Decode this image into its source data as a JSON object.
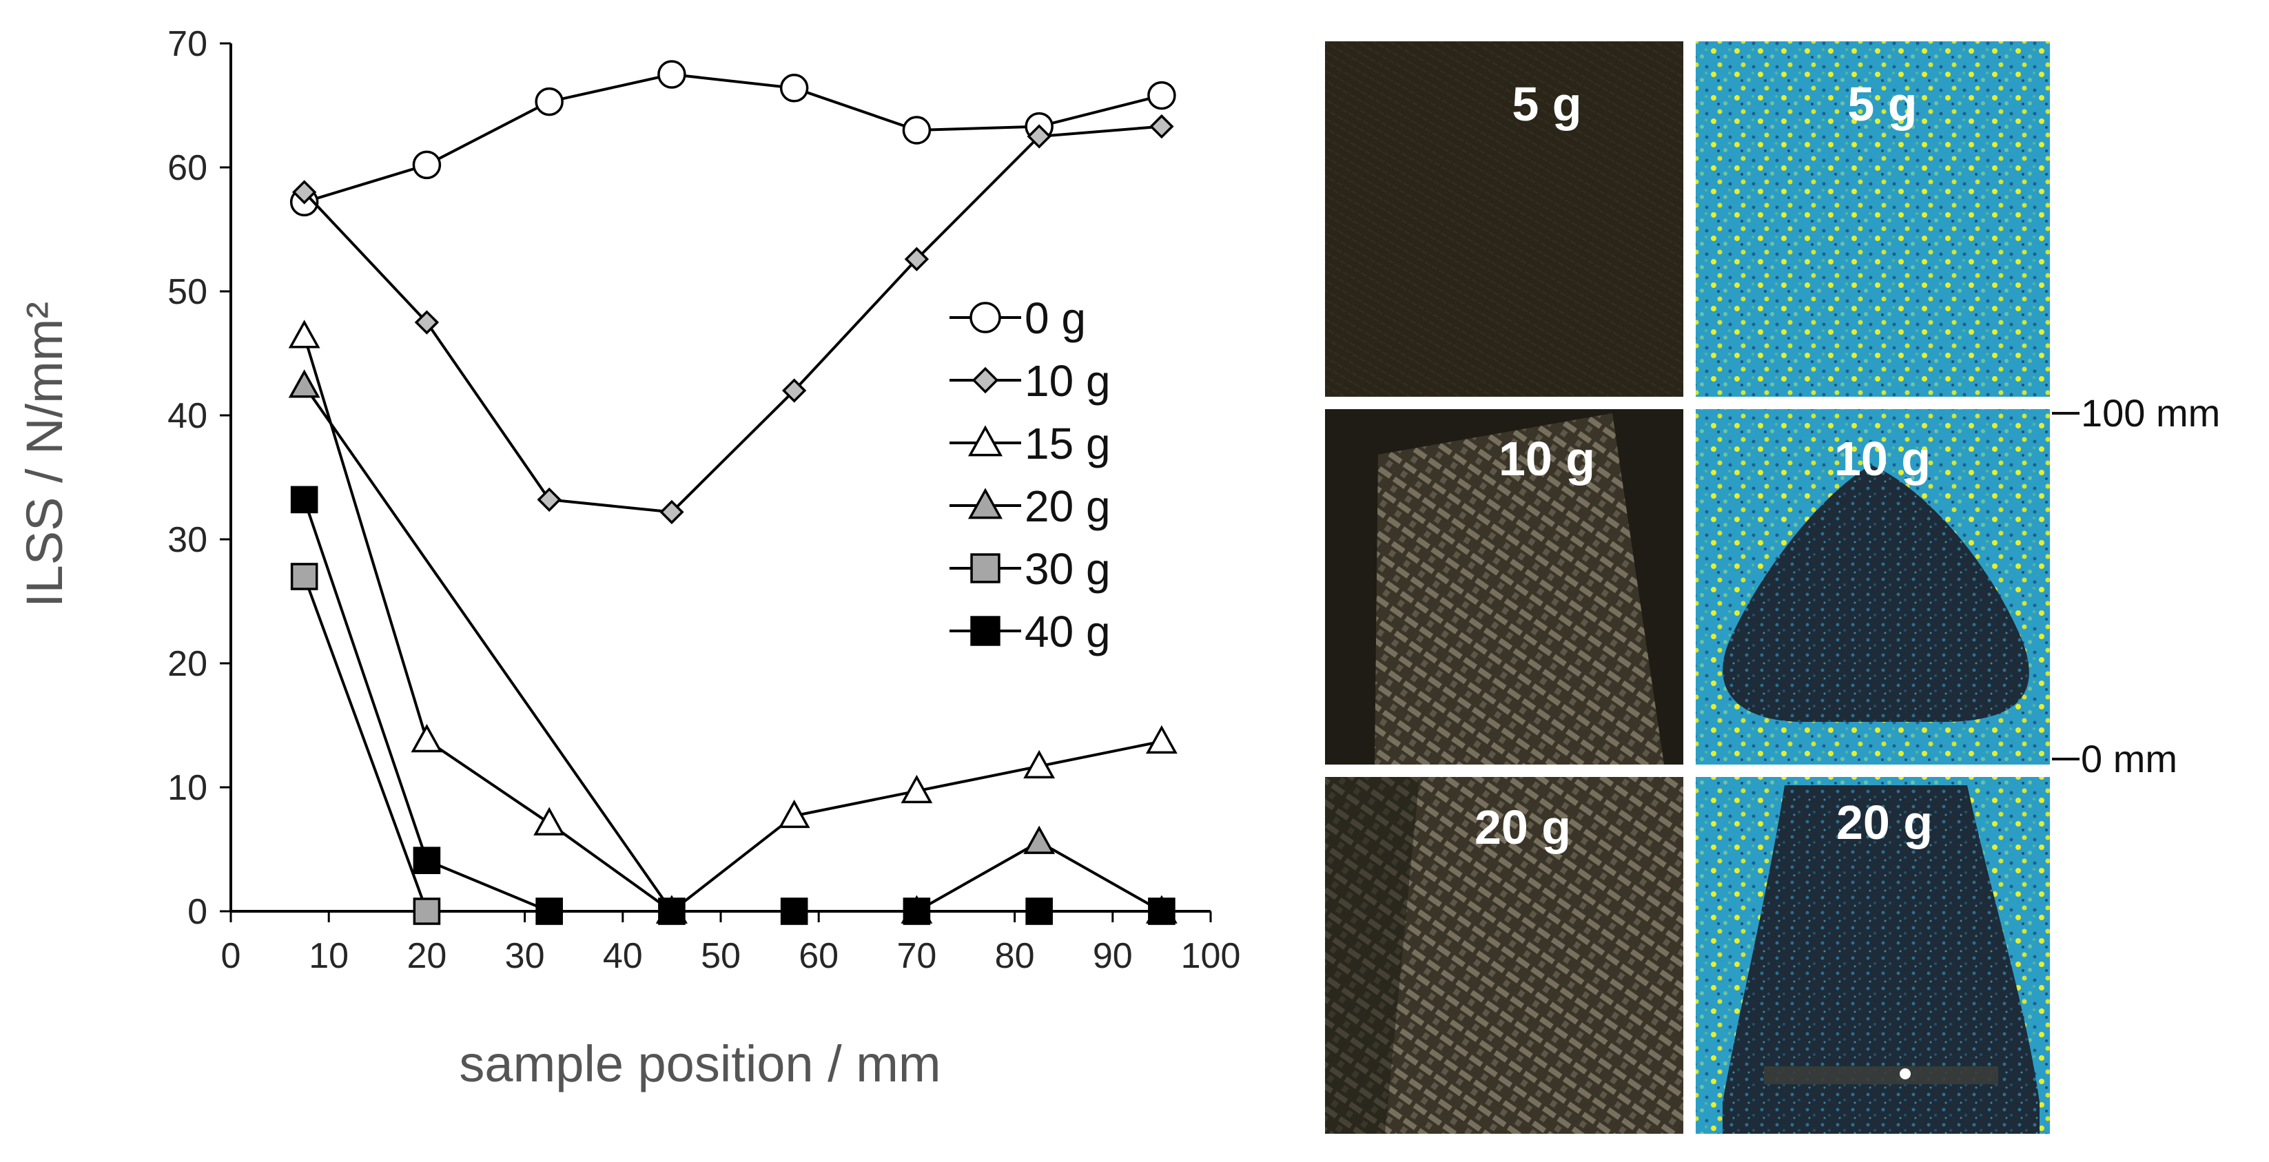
{
  "chart_data": {
    "type": "line",
    "xlabel": "sample position / mm",
    "ylabel": "ILSS / N/mm²",
    "xlim": [
      0,
      100
    ],
    "ylim": [
      0,
      70
    ],
    "x_ticks": [
      "0",
      "10",
      "20",
      "30",
      "40",
      "50",
      "60",
      "70",
      "80",
      "90",
      "100"
    ],
    "y_ticks": [
      "0",
      "10",
      "20",
      "30",
      "40",
      "50",
      "60",
      "70"
    ],
    "grid": false,
    "legend_position": "right-center",
    "x": [
      7.5,
      20,
      32.5,
      45,
      57.5,
      70,
      82.5,
      95
    ],
    "series": [
      {
        "name": "0 g",
        "marker": "circle",
        "fill": "#ffffff",
        "values": [
          57.2,
          60.2,
          65.3,
          67.5,
          66.4,
          63.0,
          63.3,
          65.8
        ]
      },
      {
        "name": "10 g",
        "marker": "diamond",
        "fill": "#bfbfbf",
        "values": [
          58.0,
          47.5,
          33.2,
          32.2,
          42.0,
          52.6,
          62.5,
          63.3
        ]
      },
      {
        "name": "15 g",
        "marker": "triangle",
        "fill": "#ffffff",
        "values": [
          46.4,
          13.8,
          7.1,
          0,
          7.7,
          9.7,
          11.7,
          13.7
        ]
      },
      {
        "name": "20 g",
        "marker": "triangle",
        "fill": "#a6a6a6",
        "values": [
          42.4,
          null,
          null,
          0,
          null,
          0,
          5.6,
          0
        ]
      },
      {
        "name": "30 g",
        "marker": "square",
        "fill": "#a6a6a6",
        "values": [
          27.0,
          0,
          null,
          null,
          null,
          null,
          null,
          null
        ]
      },
      {
        "name": "40 g",
        "marker": "square",
        "fill": "#000000",
        "values": [
          33.2,
          4.1,
          0,
          0,
          0,
          0,
          0,
          0
        ]
      }
    ]
  },
  "panels": [
    {
      "label": "5 g",
      "type": "photo"
    },
    {
      "label": "5 g",
      "type": "scan"
    },
    {
      "label": "10 g",
      "type": "photo"
    },
    {
      "label": "10 g",
      "type": "scan"
    },
    {
      "label": "20 g",
      "type": "photo"
    },
    {
      "label": "20 g",
      "type": "scan"
    }
  ],
  "scale": {
    "top_label": "100 mm",
    "bottom_label": "0 mm"
  },
  "colors": {
    "photo": "#2e2a1e",
    "scan_base": "#29a3c7",
    "scan_speckle": "#e8ee2a",
    "damage": "#1f2f3a"
  }
}
